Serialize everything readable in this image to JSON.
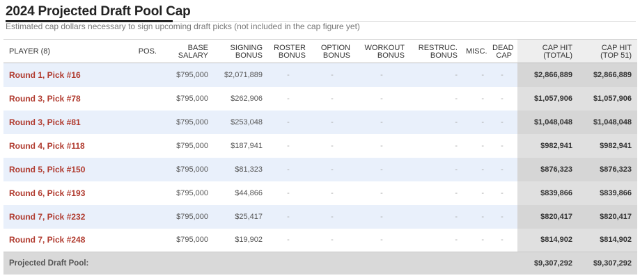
{
  "title": "2024 Projected Draft Pool Cap",
  "subtitle": "Estimated cap dollars necessary to sign upcoming draft picks (not included in the cap figure yet)",
  "headers": {
    "player": "PLAYER (8)",
    "pos": "POS.",
    "base_salary": [
      "BASE",
      "SALARY"
    ],
    "signing_bonus": [
      "SIGNING",
      "BONUS"
    ],
    "roster_bonus": [
      "ROSTER",
      "BONUS"
    ],
    "option_bonus": [
      "OPTION",
      "BONUS"
    ],
    "workout_bonus": [
      "WORKOUT",
      "BONUS"
    ],
    "restruc_bonus": [
      "RESTRUC.",
      "BONUS"
    ],
    "misc": "MISC.",
    "dead_cap": [
      "DEAD",
      "CAP"
    ],
    "cap_hit_total": [
      "CAP HIT",
      "(TOTAL)"
    ],
    "cap_hit_top51": [
      "CAP HIT",
      "(TOP 51)"
    ]
  },
  "rows": [
    {
      "player": "Round 1, Pick #16",
      "pos": "",
      "base": "$795,000",
      "signing": "$2,071,889",
      "roster": "-",
      "option": "-",
      "workout": "-",
      "restruc": "-",
      "misc": "-",
      "dead": "-",
      "total": "$2,866,889",
      "top51": "$2,866,889"
    },
    {
      "player": "Round 3, Pick #78",
      "pos": "",
      "base": "$795,000",
      "signing": "$262,906",
      "roster": "-",
      "option": "-",
      "workout": "-",
      "restruc": "-",
      "misc": "-",
      "dead": "-",
      "total": "$1,057,906",
      "top51": "$1,057,906"
    },
    {
      "player": "Round 3, Pick #81",
      "pos": "",
      "base": "$795,000",
      "signing": "$253,048",
      "roster": "-",
      "option": "-",
      "workout": "-",
      "restruc": "-",
      "misc": "-",
      "dead": "-",
      "total": "$1,048,048",
      "top51": "$1,048,048"
    },
    {
      "player": "Round 4, Pick #118",
      "pos": "",
      "base": "$795,000",
      "signing": "$187,941",
      "roster": "-",
      "option": "-",
      "workout": "-",
      "restruc": "-",
      "misc": "-",
      "dead": "-",
      "total": "$982,941",
      "top51": "$982,941"
    },
    {
      "player": "Round 5, Pick #150",
      "pos": "",
      "base": "$795,000",
      "signing": "$81,323",
      "roster": "-",
      "option": "-",
      "workout": "-",
      "restruc": "-",
      "misc": "-",
      "dead": "-",
      "total": "$876,323",
      "top51": "$876,323"
    },
    {
      "player": "Round 6, Pick #193",
      "pos": "",
      "base": "$795,000",
      "signing": "$44,866",
      "roster": "-",
      "option": "-",
      "workout": "-",
      "restruc": "-",
      "misc": "-",
      "dead": "-",
      "total": "$839,866",
      "top51": "$839,866"
    },
    {
      "player": "Round 7, Pick #232",
      "pos": "",
      "base": "$795,000",
      "signing": "$25,417",
      "roster": "-",
      "option": "-",
      "workout": "-",
      "restruc": "-",
      "misc": "-",
      "dead": "-",
      "total": "$820,417",
      "top51": "$820,417"
    },
    {
      "player": "Round 7, Pick #248",
      "pos": "",
      "base": "$795,000",
      "signing": "$19,902",
      "roster": "-",
      "option": "-",
      "workout": "-",
      "restruc": "-",
      "misc": "-",
      "dead": "-",
      "total": "$814,902",
      "top51": "$814,902"
    }
  ],
  "footer": {
    "label": "Projected Draft Pool:",
    "total": "$9,307,292",
    "top51": "$9,307,292"
  },
  "colors": {
    "player_link": "#b03a2e",
    "row_alt": "#e9f0fb",
    "cap_hit_bg": "#e0e0e0",
    "footer_bg": "#d9d9d9"
  }
}
